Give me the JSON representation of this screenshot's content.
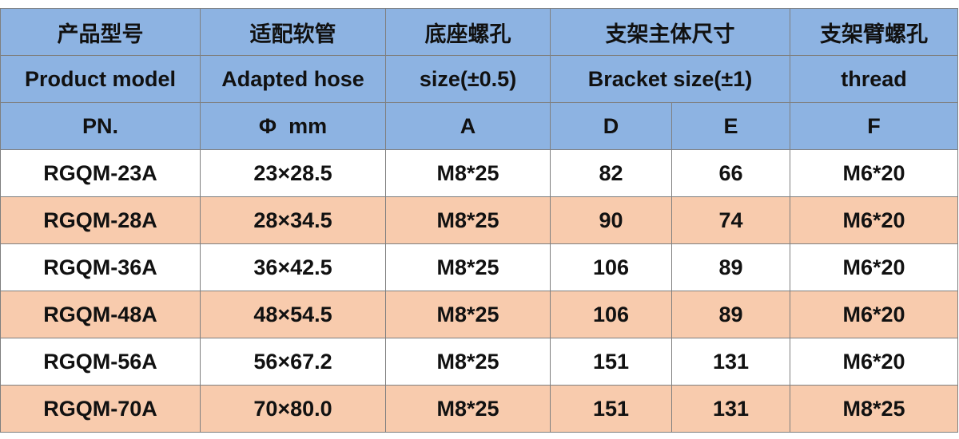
{
  "header": {
    "rows": [
      [
        "产品型号",
        "适配软管",
        "底座螺孔",
        "支架主体尺寸",
        "支架臂螺孔"
      ],
      [
        "Product model",
        "Adapted hose",
        "size(±0.5)",
        "Bracket size(±1)",
        "thread"
      ],
      [
        "PN.",
        "Φ  mm",
        "A",
        "D",
        "E",
        "F"
      ]
    ]
  },
  "table": {
    "rows": [
      [
        "RGQM-23A",
        "23×28.5",
        "M8*25",
        82,
        66,
        "M6*20"
      ],
      [
        "RGQM-28A",
        "28×34.5",
        "M8*25",
        90,
        74,
        "M6*20"
      ],
      [
        "RGQM-36A",
        "36×42.5",
        "M8*25",
        106,
        89,
        "M6*20"
      ],
      [
        "RGQM-48A",
        "48×54.5",
        "M8*25",
        106,
        89,
        "M6*20"
      ],
      [
        "RGQM-56A",
        "56×67.2",
        "M8*25",
        151,
        131,
        "M6*20"
      ],
      [
        "RGQM-70A",
        "70×80.0",
        "M8*25",
        151,
        131,
        "M8*25"
      ]
    ]
  }
}
